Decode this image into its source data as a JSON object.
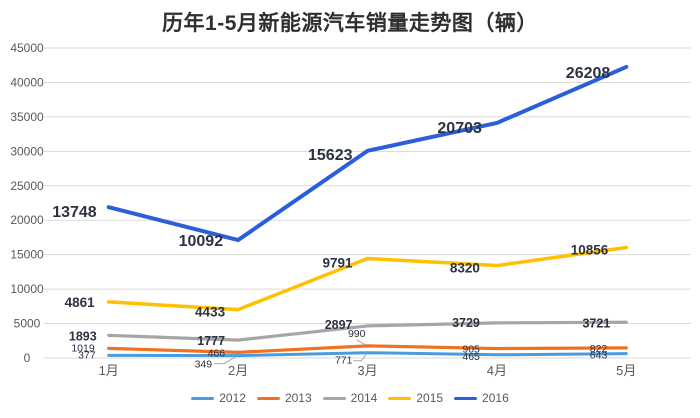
{
  "title": "历年1-5月新能源汽车销量走势图（辆）",
  "chart_data": {
    "type": "line",
    "stacked": true,
    "note": "lines are cumulative stacked totals; data labels show each year's monthly sales",
    "categories": [
      "1月",
      "2月",
      "3月",
      "4月",
      "5月"
    ],
    "series": [
      {
        "name": "2012",
        "color": "#4A9CDE",
        "values": [
          377,
          349,
          771,
          465,
          643
        ]
      },
      {
        "name": "2013",
        "color": "#F0711F",
        "values": [
          1019,
          466,
          990,
          905,
          822
        ]
      },
      {
        "name": "2014",
        "color": "#A6A6A6",
        "values": [
          1893,
          1777,
          2897,
          3729,
          3721
        ]
      },
      {
        "name": "2015",
        "color": "#FFC000",
        "values": [
          4861,
          4433,
          9791,
          8320,
          10856
        ]
      },
      {
        "name": "2016",
        "color": "#2B5FD9",
        "values": [
          13748,
          10092,
          15623,
          20703,
          26208
        ]
      }
    ],
    "ylim": [
      0,
      45000
    ],
    "ytick_step": 5000,
    "grid": "horizontal",
    "legend_position": "bottom"
  },
  "colors": {
    "grid": "#dadada",
    "axis_text": "#595959",
    "label_text": "#2d3240",
    "leader_line": "#a8a8a8",
    "title_text": "#2f2f2f",
    "background": "#ffffff"
  }
}
